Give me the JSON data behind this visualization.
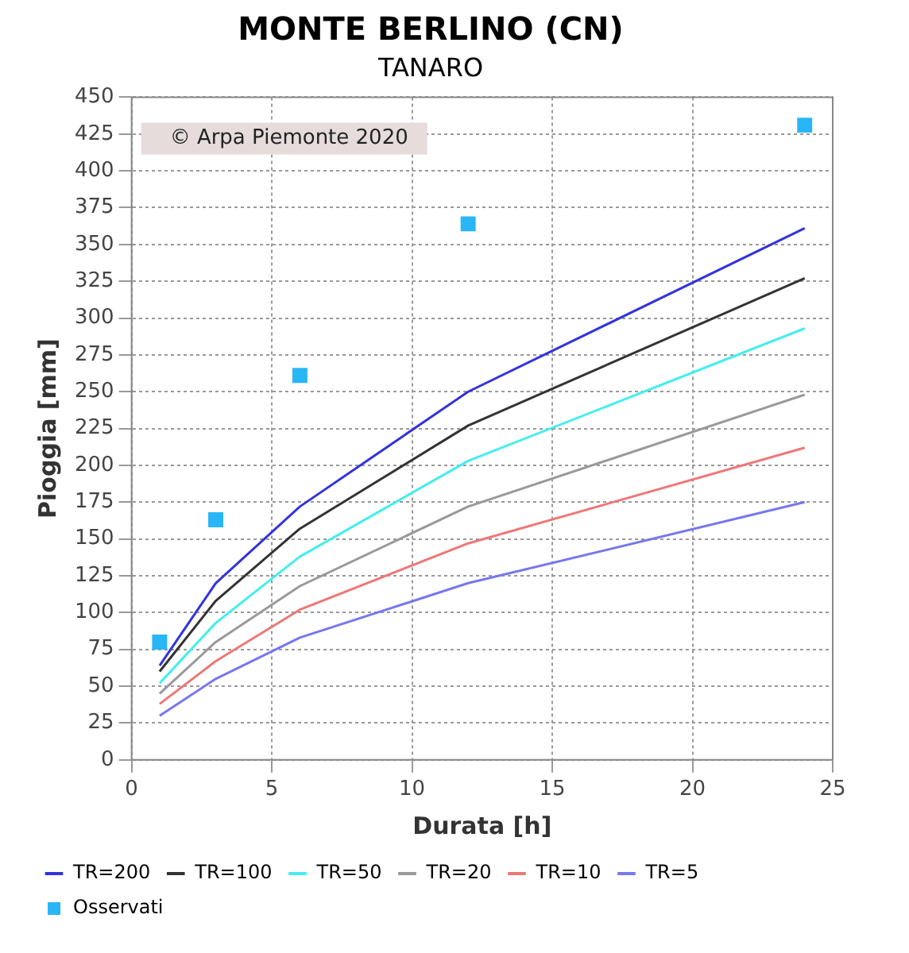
{
  "chart_data": {
    "type": "line",
    "title": "MONTE BERLINO (CN)",
    "subtitle": "TANARO",
    "xlabel": "Durata [h]",
    "ylabel": "Pioggia [mm]",
    "xlim": [
      0,
      25
    ],
    "xticks": [
      0,
      5,
      10,
      15,
      20,
      25
    ],
    "ylim": [
      0,
      450
    ],
    "yticks": [
      0,
      25,
      50,
      75,
      100,
      125,
      150,
      175,
      200,
      225,
      250,
      275,
      300,
      325,
      350,
      375,
      400,
      425,
      450
    ],
    "grid": true,
    "legend": "bottom",
    "marker": "none",
    "line_style": "solid",
    "annotations": [
      "© Arpa Piemonte 2020"
    ],
    "series": [
      {
        "name": "TR=200",
        "color": "#3333dd",
        "x": [
          1,
          3,
          6,
          12,
          24
        ],
        "values": [
          64,
          120,
          172,
          250,
          361
        ]
      },
      {
        "name": "TR=100",
        "color": "#333333",
        "x": [
          1,
          3,
          6,
          12,
          24
        ],
        "values": [
          60,
          108,
          157,
          227,
          327
        ]
      },
      {
        "name": "TR=50",
        "color": "#44eeee",
        "x": [
          1,
          3,
          6,
          12,
          24
        ],
        "values": [
          52,
          93,
          138,
          203,
          293
        ]
      },
      {
        "name": "TR=20",
        "color": "#999999",
        "x": [
          1,
          3,
          6,
          12,
          24
        ],
        "values": [
          45,
          80,
          118,
          172,
          248
        ]
      },
      {
        "name": "TR=10",
        "color": "#ee7777",
        "x": [
          1,
          3,
          6,
          12,
          24
        ],
        "values": [
          38,
          67,
          102,
          147,
          212
        ]
      },
      {
        "name": "TR=5",
        "color": "#7777ee",
        "x": [
          1,
          3,
          6,
          12,
          24
        ],
        "values": [
          30,
          55,
          83,
          120,
          175
        ]
      },
      {
        "name": "Osservati",
        "type": "scatter",
        "marker": "square",
        "color": "#29b6f6",
        "x": [
          1,
          3,
          6,
          12,
          24
        ],
        "values": [
          80,
          163,
          261,
          364,
          431
        ]
      }
    ]
  }
}
